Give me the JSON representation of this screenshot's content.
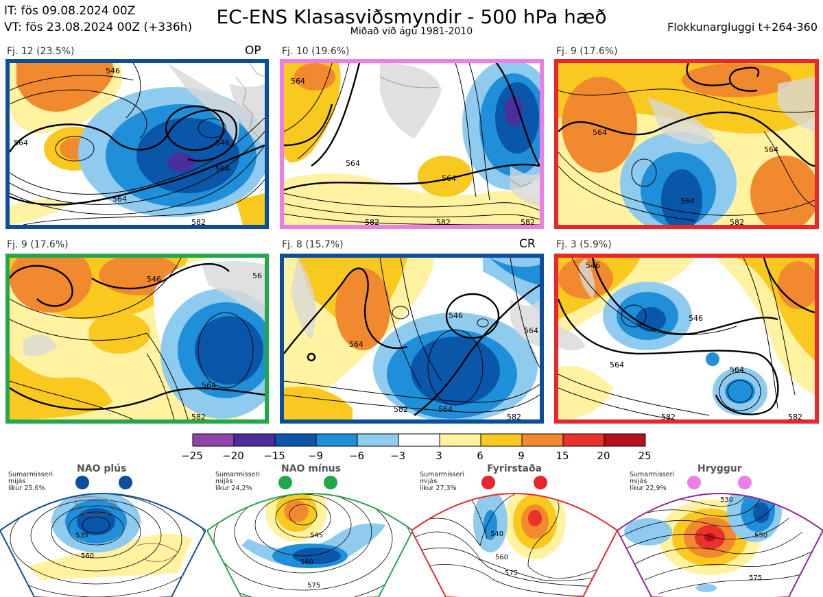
{
  "header": {
    "it_line": "IT: fös 09.08.2024 00Z",
    "vt_line": "VT: fös 23.08.2024 00Z  (+336h)",
    "title": "EC-ENS Klasasviðsmyndir - 500 hPa hæð",
    "subtitle": "Miðað við ágú 1981-2010",
    "window": "Flokkunargluggi t+264-360"
  },
  "panels": [
    {
      "label": "Fj. 12 (23.5%)",
      "tag": "OP",
      "border": "#0b4f9c"
    },
    {
      "label": "Fj. 10 (19.6%)",
      "tag": "",
      "border": "#ee7de8"
    },
    {
      "label": "Fj. 9 (17.6%)",
      "tag": "",
      "border": "#e8262b"
    },
    {
      "label": "Fj. 9 (17.6%)",
      "tag": "",
      "border": "#22a84a"
    },
    {
      "label": "Fj. 8 (15.7%)",
      "tag": "CR",
      "border": "#0b4f9c"
    },
    {
      "label": "Fj. 3 (5.9%)",
      "tag": "",
      "border": "#e8262b"
    }
  ],
  "contour_labels": {
    "p0": [
      "546",
      "546",
      "564",
      "564",
      "564",
      "582"
    ],
    "p1": [
      "564",
      "564",
      "564",
      "582",
      "582",
      "582"
    ],
    "p2": [
      "564",
      "564",
      "564",
      "582"
    ],
    "p3": [
      "546",
      "564",
      "582",
      "56"
    ],
    "p4": [
      "546",
      "564",
      "564",
      "582",
      "564",
      "582"
    ],
    "p5": [
      "546",
      "546",
      "564",
      "564",
      "582",
      "582"
    ]
  },
  "colorbar": {
    "labels": [
      "−25",
      "−20",
      "−15",
      "−9",
      "−6",
      "−3",
      "3",
      "6",
      "9",
      "15",
      "20",
      "25"
    ],
    "colors": [
      "#8e44a8",
      "#4b2d9c",
      "#0a56a8",
      "#1e8fd8",
      "#8fcbee",
      "#ffffff",
      "#fff2a0",
      "#f9c920",
      "#f18a2e",
      "#e8322a",
      "#b50f1b"
    ]
  },
  "regimes": [
    {
      "title": "NAO plús",
      "text": [
        "Sumarmisseri",
        "mijás",
        "líkur 25,6%"
      ],
      "color": "#0b4f9c",
      "labels": [
        "535",
        "560"
      ]
    },
    {
      "title": "NAO mínus",
      "text": [
        "Sumarmisseri",
        "mijás",
        "líkur 24,2%"
      ],
      "color": "#22a84a",
      "labels": [
        "545",
        "560",
        "575"
      ]
    },
    {
      "title": "Fyrirstaða",
      "text": [
        "Sumarmisseri",
        "mijás",
        "líkur 27,3%"
      ],
      "color": "#e8262b",
      "labels": [
        "540",
        "560",
        "575"
      ]
    },
    {
      "title": "Hryggur",
      "text": [
        "Sumarmisseri",
        "mijás",
        "líkur 22,9%"
      ],
      "color": "#ee7de8",
      "labels": [
        "530",
        "550",
        "575"
      ]
    }
  ]
}
